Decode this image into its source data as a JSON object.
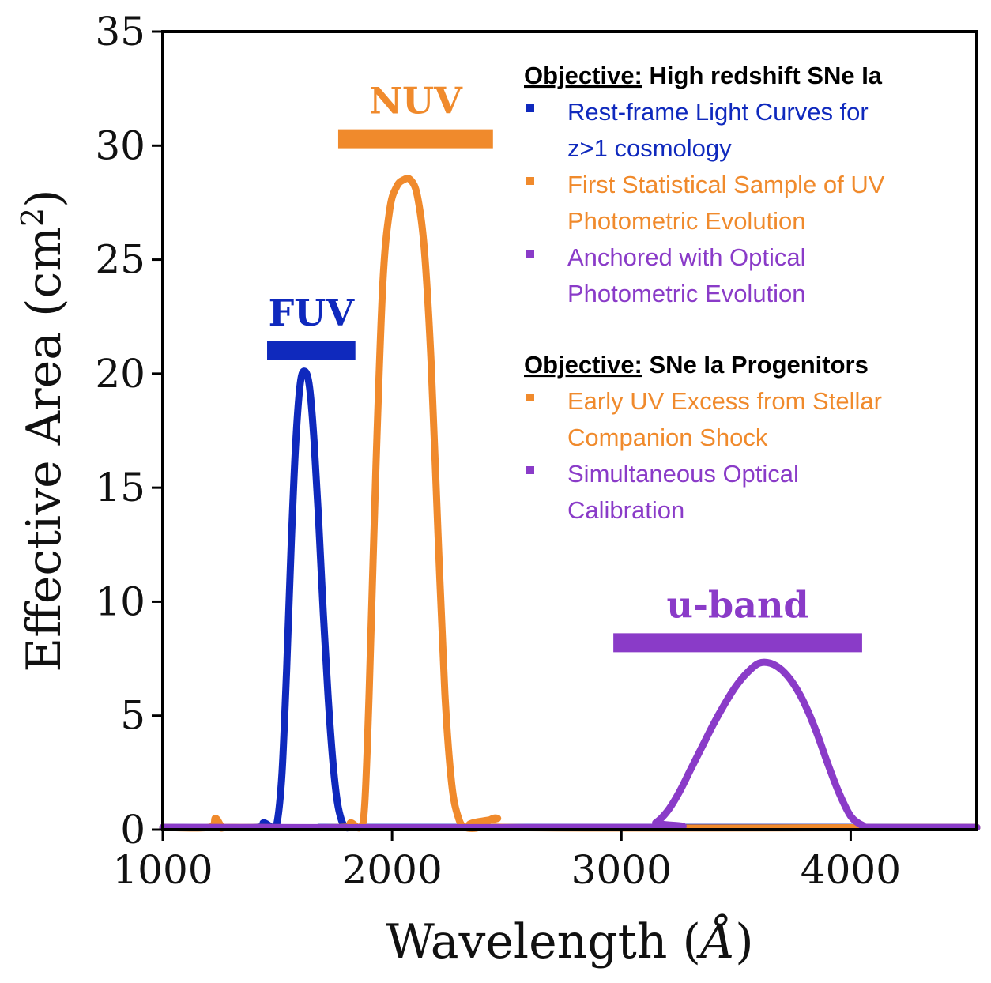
{
  "chart_data": {
    "type": "line",
    "xlabel_main": "Wavelength (",
    "xlabel_unit": "Å",
    "xlabel_close": ")",
    "ylabel_main": "Effective Area (cm",
    "ylabel_sup": "2",
    "ylabel_close": ")",
    "xlim": [
      1000,
      4550
    ],
    "ylim": [
      0,
      35
    ],
    "xticks": [
      1000,
      2000,
      3000,
      4000
    ],
    "yticks": [
      0,
      5,
      10,
      15,
      20,
      25,
      30,
      35
    ],
    "series": [
      {
        "name": "FUV",
        "color": "#0f29bd",
        "x": [
          1000,
          1400,
          1440,
          1480,
          1500,
          1520,
          1540,
          1560,
          1580,
          1600,
          1620,
          1640,
          1660,
          1680,
          1700,
          1720,
          1740,
          1760,
          1780,
          1800,
          1820,
          1900,
          4550
        ],
        "y": [
          0.1,
          0.1,
          0.3,
          0.1,
          0.4,
          2.5,
          7.0,
          12.5,
          17.0,
          19.6,
          20.1,
          19.4,
          17.0,
          13.5,
          9.5,
          6.0,
          3.2,
          1.3,
          0.4,
          0.1,
          0.1,
          0.1,
          0.1
        ]
      },
      {
        "name": "NUV",
        "color": "#f08a2c",
        "x": [
          1000,
          1200,
          1230,
          1260,
          1300,
          1780,
          1820,
          1860,
          1880,
          1900,
          1930,
          1960,
          1990,
          2020,
          2050,
          2080,
          2110,
          2140,
          2170,
          2200,
          2230,
          2260,
          2290,
          2320,
          2380,
          2420,
          2460,
          2500,
          4550
        ],
        "y": [
          0.1,
          0.1,
          0.5,
          0.1,
          0.1,
          0.1,
          0.3,
          0.1,
          1.0,
          6.0,
          16.0,
          24.0,
          27.2,
          28.2,
          28.5,
          28.5,
          27.8,
          25.5,
          20.5,
          13.0,
          6.0,
          2.0,
          0.5,
          0.1,
          0.1,
          0.4,
          0.5,
          0.1,
          0.1
        ]
      },
      {
        "name": "u-band",
        "color": "#8a3bc8",
        "x": [
          1000,
          3100,
          3150,
          3200,
          3250,
          3300,
          3350,
          3400,
          3450,
          3500,
          3550,
          3600,
          3650,
          3700,
          3750,
          3800,
          3850,
          3900,
          3950,
          4000,
          4050,
          4100,
          4550
        ],
        "y": [
          0.1,
          0.1,
          0.3,
          0.8,
          1.6,
          2.6,
          3.6,
          4.6,
          5.5,
          6.3,
          6.9,
          7.3,
          7.3,
          7.0,
          6.4,
          5.5,
          4.3,
          2.9,
          1.6,
          0.6,
          0.2,
          0.1,
          0.1
        ]
      }
    ],
    "bands": [
      {
        "label": "FUV",
        "color": "#0f29bd",
        "x_start": 1455,
        "x_end": 1840,
        "y": 21.0
      },
      {
        "label": "NUV",
        "color": "#f08a2c",
        "x_start": 1765,
        "x_end": 2440,
        "y": 30.3
      },
      {
        "label": "u-band",
        "color": "#8a3bc8",
        "x_start": 2965,
        "x_end": 4050,
        "y": 8.2
      }
    ]
  },
  "objectives": [
    {
      "heading_label": "Objective:",
      "heading_text": " High redshift SNe Ia",
      "items": [
        {
          "color": "#0f29bd",
          "lines": [
            "Rest-frame Light Curves for",
            "z>1 cosmology"
          ]
        },
        {
          "color": "#f08a2c",
          "lines": [
            "First Statistical Sample of UV",
            "Photometric Evolution"
          ]
        },
        {
          "color": "#8a3bc8",
          "lines": [
            "Anchored with Optical",
            "Photometric Evolution"
          ]
        }
      ]
    },
    {
      "heading_label": "Objective:",
      "heading_text": " SNe Ia Progenitors",
      "items": [
        {
          "color": "#f08a2c",
          "lines": [
            "Early UV Excess from Stellar",
            "Companion Shock"
          ]
        },
        {
          "color": "#8a3bc8",
          "lines": [
            "Simultaneous Optical",
            "Calibration"
          ]
        }
      ]
    }
  ]
}
